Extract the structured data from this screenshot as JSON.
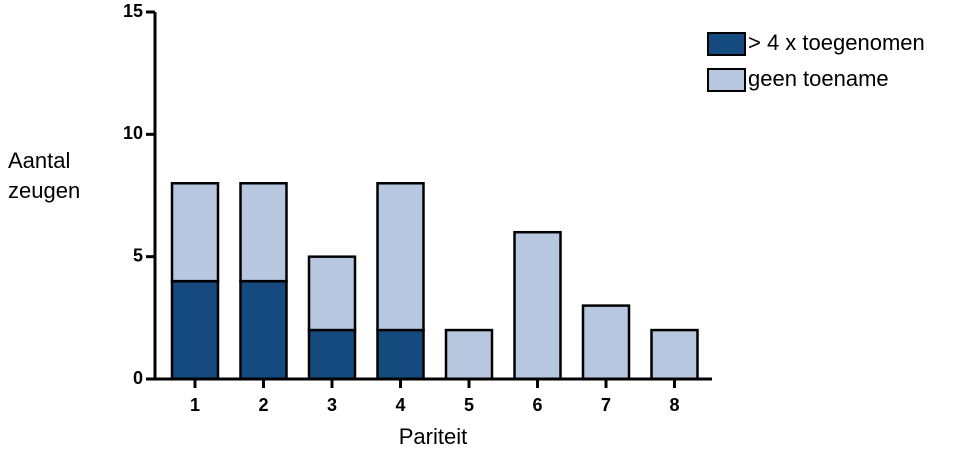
{
  "chart_data": {
    "type": "bar",
    "stacked": true,
    "xlabel": "Pariteit",
    "ylabel": "Aantal zeugen",
    "categories": [
      "1",
      "2",
      "3",
      "4",
      "5",
      "6",
      "7",
      "8"
    ],
    "series": [
      {
        "name": "> 4 x toegenomen",
        "color": "#154a7e",
        "values": [
          4,
          4,
          2,
          2,
          0,
          0,
          0,
          0
        ]
      },
      {
        "name": "geen toename",
        "color": "#b7c7df",
        "values": [
          4,
          4,
          3,
          6,
          2,
          6,
          3,
          2
        ]
      }
    ],
    "ylim": [
      0,
      15
    ],
    "yticks": [
      0,
      5,
      10,
      15
    ],
    "grid": false,
    "legend": "top-right"
  }
}
